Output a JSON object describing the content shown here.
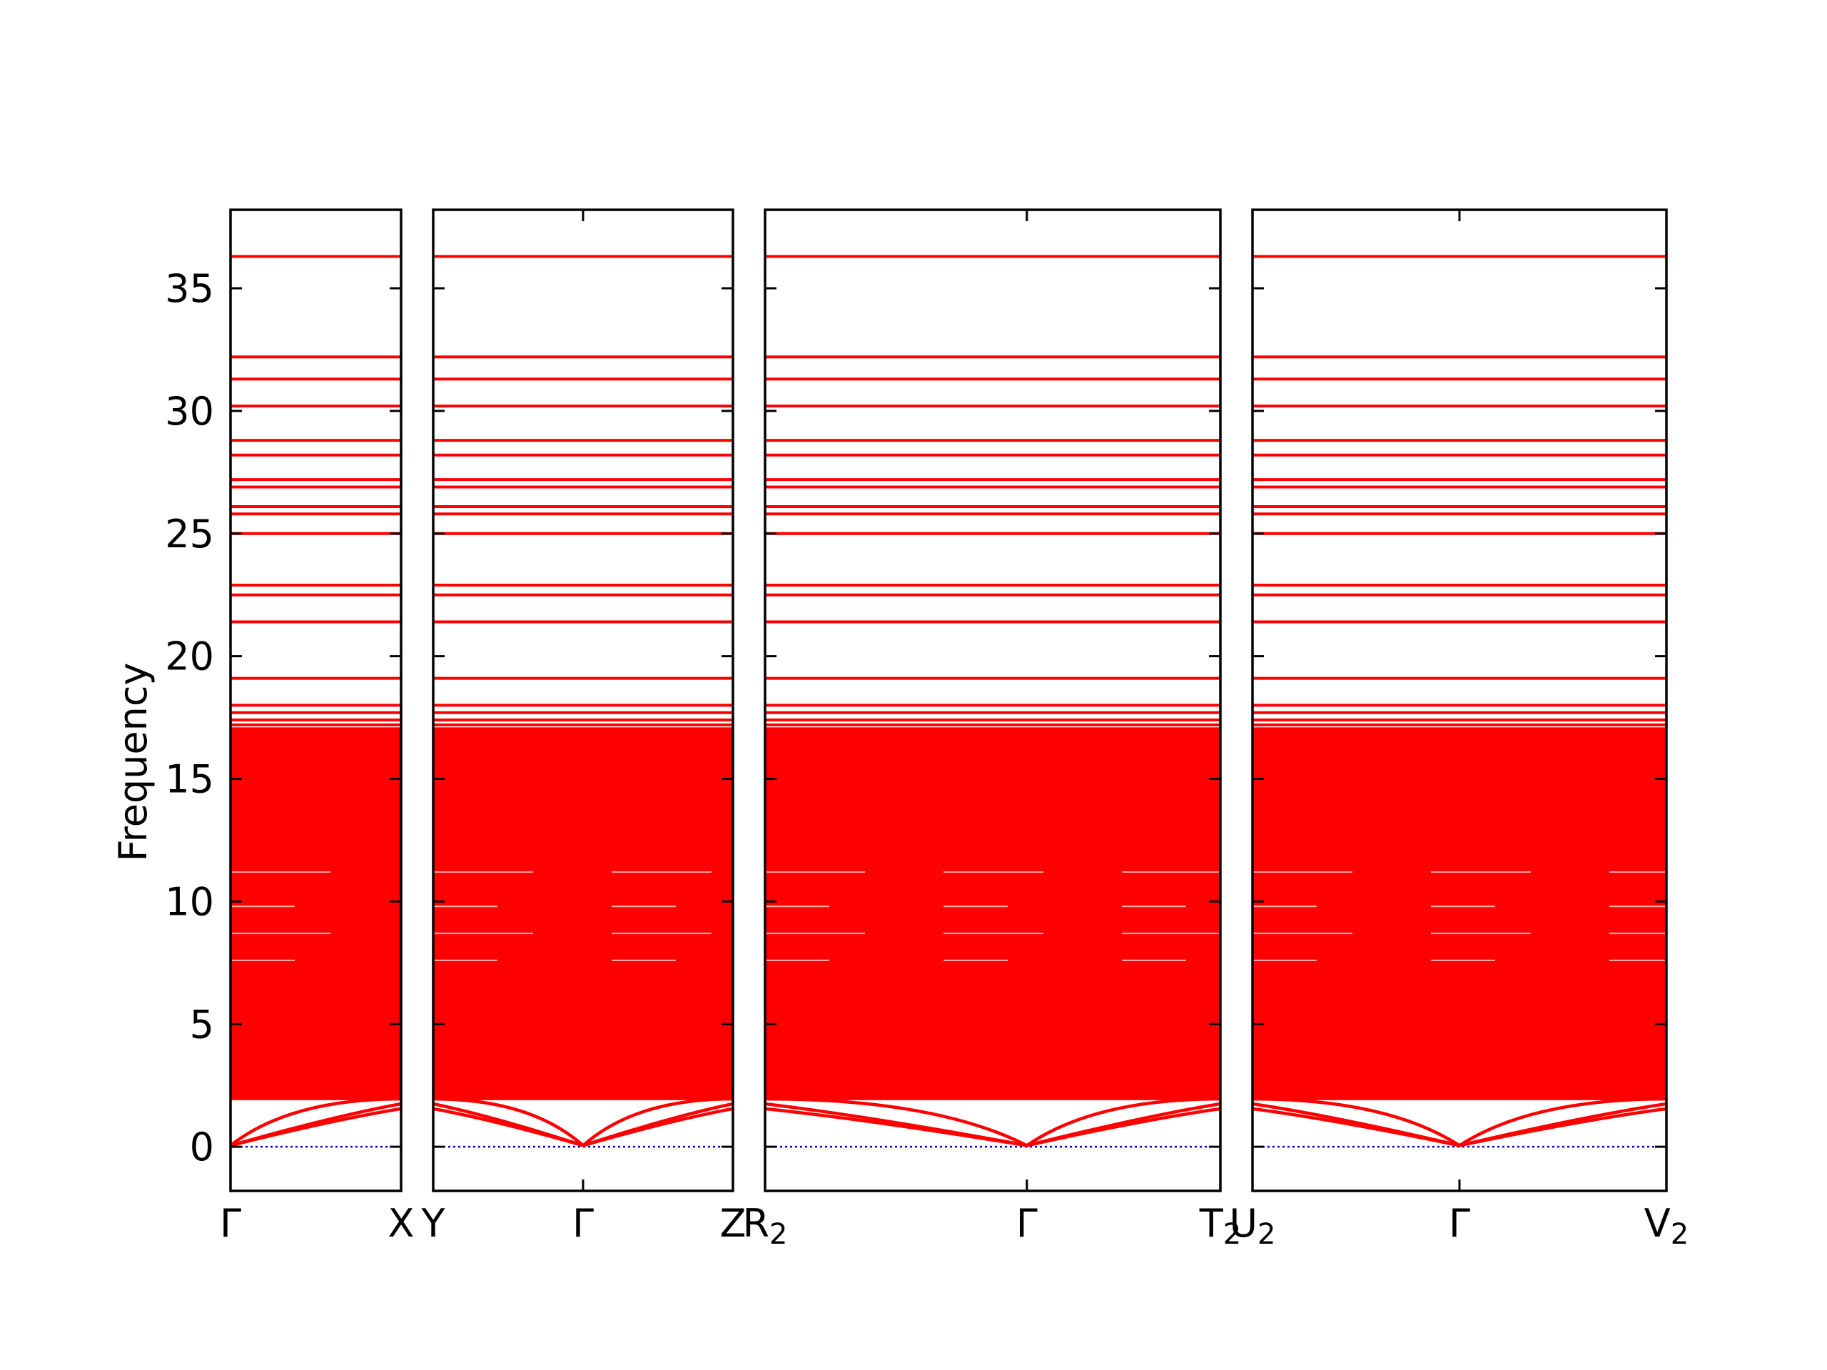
{
  "chart_data": {
    "type": "line",
    "title": "",
    "ylabel": "Frequency",
    "ylim": [
      -1.8,
      38.2
    ],
    "y_ticks": [
      "0",
      "5",
      "10",
      "15",
      "20",
      "25",
      "30",
      "35"
    ],
    "y_tick_values": [
      0,
      5,
      10,
      15,
      20,
      25,
      30,
      35
    ],
    "grid": false,
    "panels": [
      {
        "name": "panel-1",
        "x_range": [
          0,
          1
        ],
        "k_points": [
          {
            "label": "Γ",
            "sub": "",
            "x": 0
          },
          {
            "label": "X",
            "sub": "",
            "x": 1
          }
        ]
      },
      {
        "name": "panel-2",
        "x_range": [
          0,
          2
        ],
        "k_points": [
          {
            "label": "Y",
            "sub": "",
            "x": 0
          },
          {
            "label": "Γ",
            "sub": "",
            "x": 1
          },
          {
            "label": "Z",
            "sub": "",
            "x": 2
          }
        ]
      },
      {
        "name": "panel-3",
        "x_range": [
          0,
          2
        ],
        "k_points": [
          {
            "label": "R",
            "sub": "2",
            "x": 0
          },
          {
            "label": "Γ",
            "sub": "",
            "x": 1.15
          },
          {
            "label": "T",
            "sub": "2",
            "x": 2
          }
        ]
      },
      {
        "name": "panel-4",
        "x_range": [
          0,
          2
        ],
        "k_points": [
          {
            "label": "U",
            "sub": "2",
            "x": 0
          },
          {
            "label": "Γ",
            "sub": "",
            "x": 1
          },
          {
            "label": "V",
            "sub": "2",
            "x": 2
          }
        ]
      }
    ],
    "series": [
      {
        "type": "flat-band",
        "color": "#ff0000",
        "values": [
          36.3,
          32.2,
          31.3,
          30.2,
          28.8,
          28.2,
          27.2,
          26.9,
          26.1,
          25.8,
          25.0,
          22.9,
          22.5,
          21.4,
          19.1,
          18.0,
          17.7,
          17.4,
          17.2
        ]
      },
      {
        "type": "dense-band-region",
        "color": "#ff0000",
        "range": [
          1.9,
          17.1
        ]
      },
      {
        "type": "acoustic-branch",
        "color": "#ff0000",
        "gamma_value": 0.05,
        "boundary_values": [
          1.55,
          1.75,
          1.95
        ]
      },
      {
        "type": "zero-reference",
        "color": "#0000cc",
        "value": 0
      }
    ],
    "dense_gaps": [
      11.2,
      9.8,
      8.7,
      7.6
    ]
  }
}
